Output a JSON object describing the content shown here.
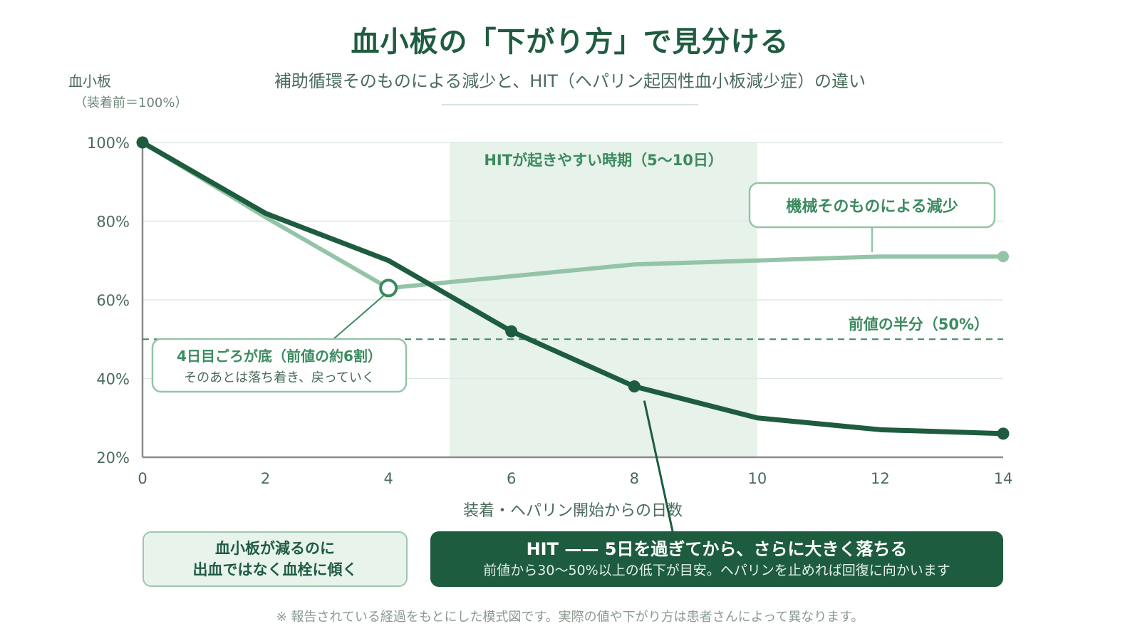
{
  "title": "血小板の「下がり方」で見分ける",
  "subtitle": "補助循環そのものによる減少と、HIT（ヘパリン起因性血小板減少症）の違い",
  "y_axis_title": "血小板",
  "y_axis_subtitle": "（装着前＝100%）",
  "footnote": "※ 報告されている経過をもとにした模式図です。実際の値や下がり方は患者さんによって異なります。",
  "annotations": {
    "hit_window": "HITが起きやすい時期（5〜10日）",
    "mechanical": "機械そのものによる減少",
    "half_line": "前値の半分（50%）",
    "nadir_title": "4日目ごろが底（前値の約6割）",
    "nadir_detail": "そのあとは落ち着き、戻っていく",
    "bottom_left_line1": "血小板が減るのに",
    "bottom_left_line2": "出血ではなく血栓に傾く",
    "hit_title": "HIT —— 5日を過ぎてから、さらに大きく落ちる",
    "hit_detail": "前値から30〜50%以上の低下が目安。ヘパリンを止めれば回復に向かいます"
  },
  "colors": {
    "hit_series": "#1e5c3f",
    "mechanical_series": "#94c4a8",
    "shade": "#e6f2ea",
    "grid": "#dfe9e3",
    "axis": "#8a8a8a",
    "reference": "#3d8a60"
  },
  "chart_data": {
    "type": "line",
    "xlabel": "装着・ヘパリン開始からの日数",
    "ylabel": "血小板",
    "xlim": [
      0,
      14
    ],
    "ylim": [
      20,
      100
    ],
    "x_ticks": [
      0,
      2,
      4,
      6,
      8,
      10,
      12,
      14
    ],
    "y_ticks": [
      20,
      40,
      60,
      80,
      100
    ],
    "y_tick_labels": [
      "20%",
      "40%",
      "60%",
      "80%",
      "100%"
    ],
    "grid": true,
    "shaded_range": {
      "x": [
        5,
        10
      ],
      "label": "HITが起きやすい時期（5〜10日）"
    },
    "reference_line": {
      "y": 50,
      "label": "前値の半分（50%）",
      "style": "dashed"
    },
    "series": [
      {
        "name": "機械そのものによる減少",
        "x": [
          0,
          2,
          4,
          6,
          8,
          10,
          12,
          14
        ],
        "y": [
          100,
          81,
          63,
          66,
          69,
          70,
          71,
          71
        ],
        "markers": [
          {
            "x": 4,
            "y": 63,
            "style": "hollow"
          },
          {
            "x": 14,
            "y": 71,
            "style": "filled"
          }
        ]
      },
      {
        "name": "HIT",
        "x": [
          0,
          2,
          4,
          6,
          8,
          10,
          12,
          14
        ],
        "y": [
          100,
          82,
          70,
          52,
          38,
          30,
          27,
          26
        ],
        "markers": [
          {
            "x": 0,
            "y": 100,
            "style": "filled"
          },
          {
            "x": 6,
            "y": 52,
            "style": "filled"
          },
          {
            "x": 8,
            "y": 38,
            "style": "filled"
          },
          {
            "x": 14,
            "y": 26,
            "style": "filled"
          }
        ]
      }
    ]
  }
}
